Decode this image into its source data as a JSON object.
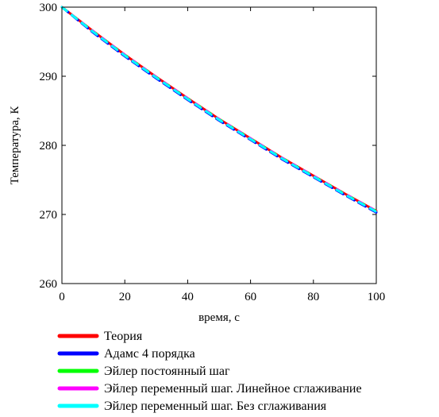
{
  "chart_data": {
    "type": "line",
    "title": "",
    "xlabel": "время, с",
    "ylabel": "Температура, К",
    "xlim": [
      0,
      100
    ],
    "ylim": [
      260,
      300
    ],
    "x_ticks": [
      "0",
      "20",
      "40",
      "60",
      "80",
      "100"
    ],
    "y_ticks": [
      "260",
      "270",
      "280",
      "290",
      "300"
    ],
    "grid": false,
    "legend_position": "bottom",
    "x": [
      0,
      10,
      20,
      30,
      40,
      50,
      60,
      70,
      80,
      90,
      100
    ],
    "series": [
      {
        "name": "Теория",
        "color": "#ff0000",
        "values": [
          300,
          296.5,
          293.1,
          289.9,
          286.8,
          283.8,
          281.0,
          278.2,
          275.6,
          273.0,
          270.5
        ]
      },
      {
        "name": "Адамс 4 порядка",
        "color": "#0000ff",
        "values": [
          300,
          296.3,
          292.9,
          289.7,
          286.6,
          283.6,
          280.8,
          278.0,
          275.4,
          272.8,
          270.3
        ]
      },
      {
        "name": "Эйлер постоянный шаг",
        "color": "#00ff00",
        "values": [
          300,
          296.5,
          293.1,
          289.9,
          286.8,
          283.8,
          281.0,
          278.2,
          275.6,
          273.0,
          270.5
        ]
      },
      {
        "name": "Эйлер переменный шаг. Линейное сглаживание",
        "color": "#ff00ff",
        "values": [
          300,
          296.5,
          293.1,
          289.9,
          286.8,
          283.8,
          281.0,
          278.2,
          275.6,
          273.0,
          270.5
        ]
      },
      {
        "name": "Эйлер переменный шаг. Без сглаживания",
        "color": "#00ffff",
        "values": [
          300,
          296.4,
          293.0,
          289.8,
          286.7,
          283.7,
          280.9,
          278.1,
          275.5,
          272.9,
          270.4
        ]
      }
    ]
  }
}
